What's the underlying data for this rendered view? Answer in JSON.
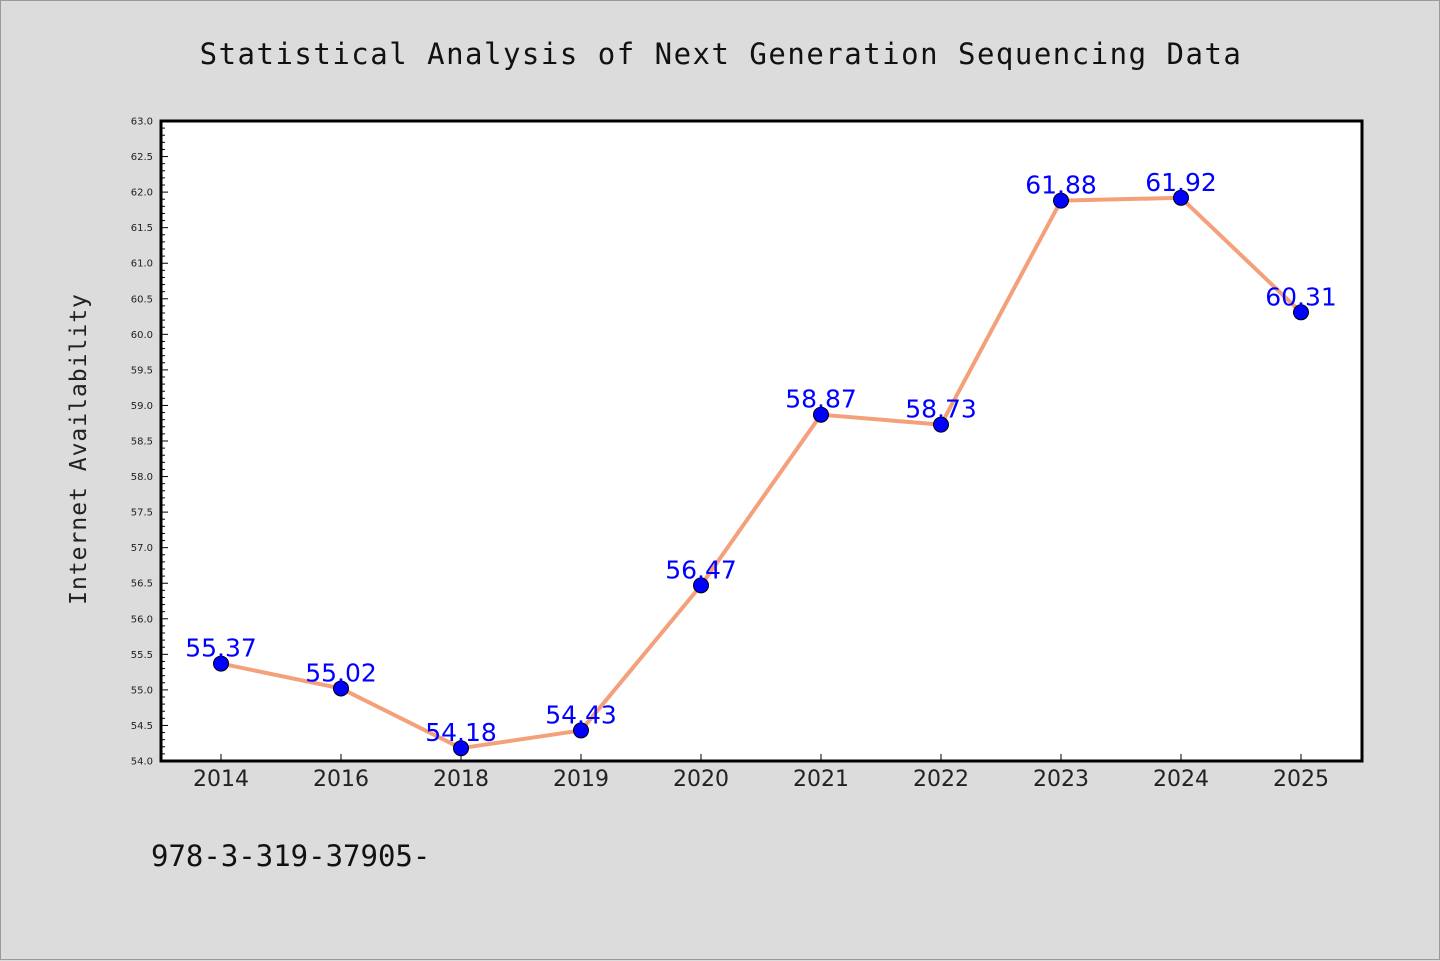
{
  "chart_data": {
    "type": "line",
    "title": "Statistical Analysis of Next Generation Sequencing Data",
    "xlabel": "",
    "ylabel": "Internet Availability",
    "categories": [
      "2014",
      "2016",
      "2018",
      "2019",
      "2020",
      "2021",
      "2022",
      "2023",
      "2024",
      "2025"
    ],
    "series": [
      {
        "values": [
          55.37,
          55.02,
          54.18,
          54.43,
          56.47,
          58.87,
          58.73,
          61.88,
          61.92,
          60.31
        ],
        "labels": [
          "55.37",
          "55.02",
          "54.18",
          "54.43",
          "56.47",
          "58.87",
          "58.73",
          "61.88",
          "61.92",
          "60.31"
        ],
        "line_color": "#f4a07a",
        "marker_color": "#0000ff"
      }
    ],
    "ylim": [
      54.0,
      63.0
    ],
    "yticks": [
      "54.0",
      "54.5",
      "55.0",
      "55.5",
      "56.0",
      "56.5",
      "57.0",
      "57.5",
      "58.0",
      "58.5",
      "59.0",
      "59.5",
      "60.0",
      "60.5",
      "61.0",
      "61.5",
      "62.0",
      "62.5",
      "63.0"
    ],
    "grid": false,
    "legend": "none"
  },
  "footer": {
    "text": "978-3-319-37905-"
  },
  "colors": {
    "background": "#dcdcdc",
    "plot_background": "#ffffff",
    "line": "#f4a07a",
    "marker": "#0000ff",
    "data_label": "#0000ff"
  }
}
